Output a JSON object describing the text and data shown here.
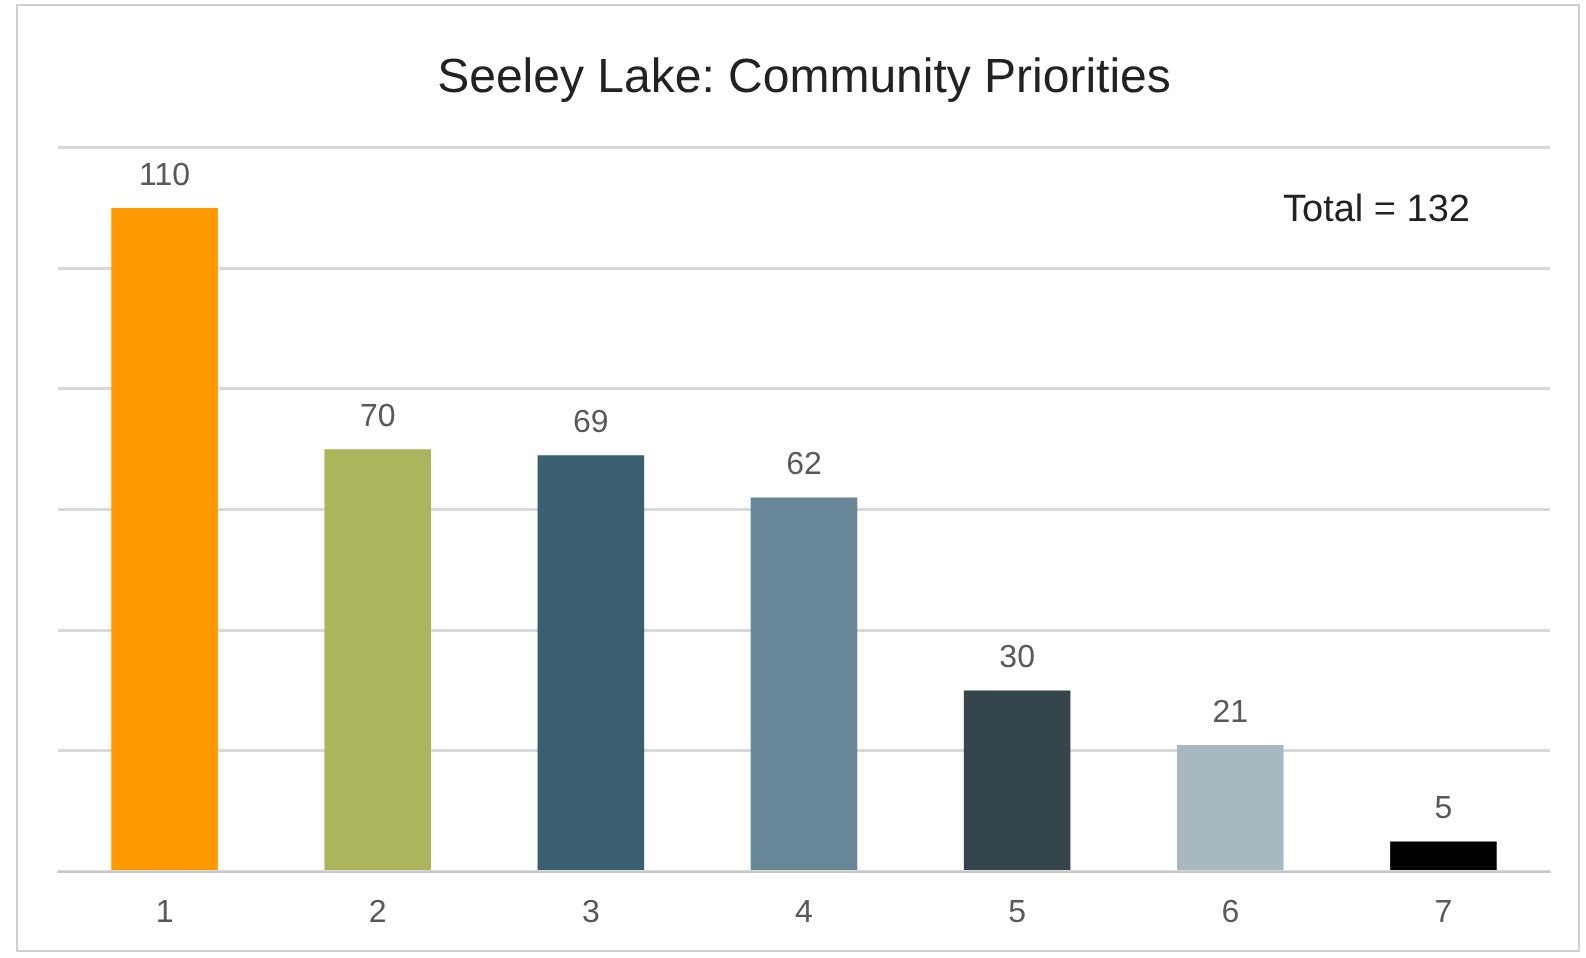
{
  "chart_data": {
    "type": "bar",
    "title": "Seeley Lake: Community Priorities",
    "categories": [
      "1",
      "2",
      "3",
      "4",
      "5",
      "6",
      "7"
    ],
    "values": [
      110,
      70,
      69,
      62,
      30,
      21,
      5
    ],
    "colors": [
      "#ff9900",
      "#adb55c",
      "#3a6070",
      "#688898",
      "#36444c",
      "#a8b8c0",
      "#000000"
    ],
    "ylim": [
      0,
      120
    ],
    "yticks": [
      {
        "value": 0,
        "label": null
      },
      {
        "value": 20,
        "label": null
      },
      {
        "value": 40,
        "label": null
      },
      {
        "value": 60,
        "label": null
      },
      {
        "value": 80,
        "label": null
      },
      {
        "value": 100,
        "label": null
      },
      {
        "value": 120,
        "label": null
      }
    ],
    "grid": "y",
    "tick_labels": "x",
    "data_labels": true,
    "legend": false,
    "annotations": [
      "Total = 132"
    ]
  }
}
